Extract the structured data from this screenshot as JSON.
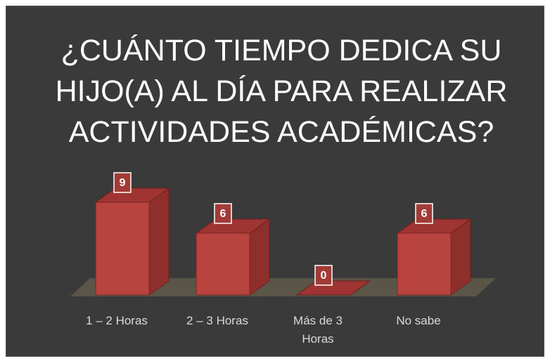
{
  "chart_data": {
    "type": "bar3d",
    "title": [
      "¿CUÁNTO TIEMPO DEDICA SU",
      "HIJO(A) AL DÍA PARA REALIZAR",
      "ACTIVIDADES ACADÉMICAS?"
    ],
    "categories": [
      "1 – 2 Horas",
      "2 – 3 Horas",
      "Más de 3 Horas",
      "No sabe"
    ],
    "values": [
      9,
      6,
      0,
      6
    ],
    "color": "#b8433f"
  }
}
